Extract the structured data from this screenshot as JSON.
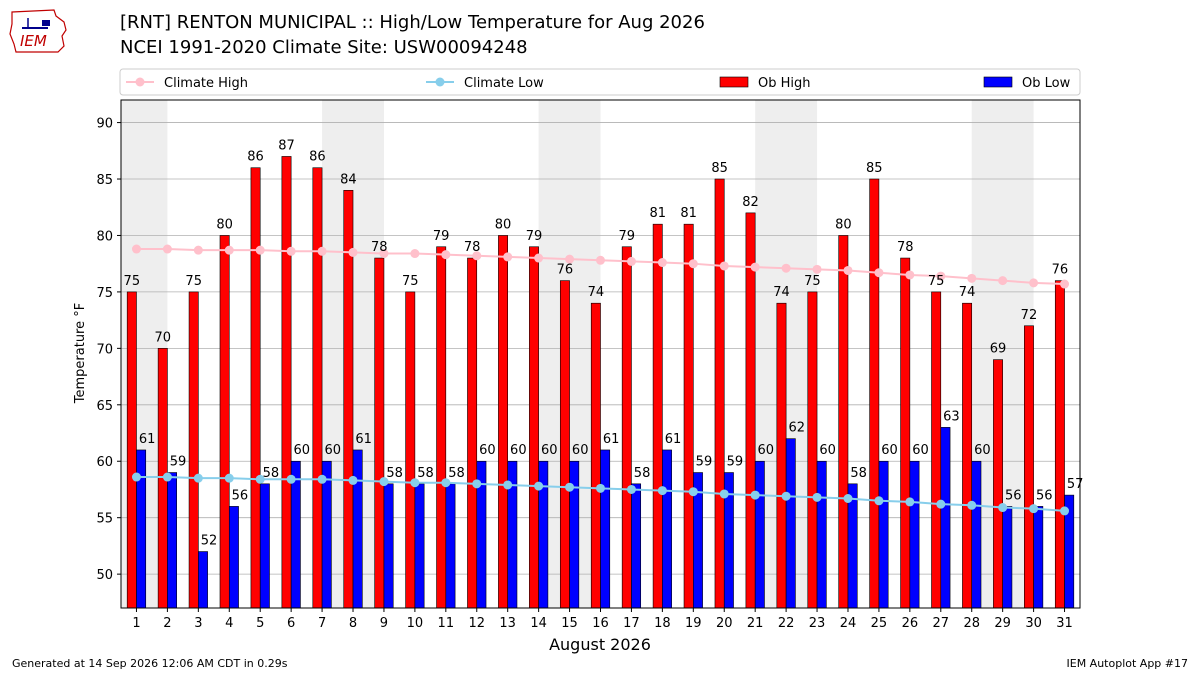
{
  "header": {
    "title_line1": "[RNT] RENTON MUNICIPAL :: High/Low Temperature for Aug 2026",
    "title_line2": "NCEI 1991-2020 Climate Site: USW00094248",
    "logo_text": "IEM"
  },
  "footer": {
    "generated": "Generated at 14 Sep 2026 12:06 AM CDT in 0.29s",
    "app": "IEM Autoplot App #17"
  },
  "colors": {
    "ob_high": "#ff0000",
    "ob_low": "#0000ff",
    "climate_high": "#ffc0cb",
    "climate_low": "#87ceeb",
    "weekend_band": "#eeeeee",
    "grid": "#b0b0b0"
  },
  "chart_data": {
    "type": "bar",
    "xlabel": "August 2026",
    "ylabel": "Temperature °F",
    "ylim": [
      47,
      92
    ],
    "yticks": [
      50,
      55,
      60,
      65,
      70,
      75,
      80,
      85,
      90
    ],
    "grid": true,
    "legend_placement": "top",
    "categories": [
      "1",
      "2",
      "3",
      "4",
      "5",
      "6",
      "7",
      "8",
      "9",
      "10",
      "11",
      "12",
      "13",
      "14",
      "15",
      "16",
      "17",
      "18",
      "19",
      "20",
      "21",
      "22",
      "23",
      "24",
      "25",
      "26",
      "27",
      "28",
      "29",
      "30",
      "31"
    ],
    "shaded_days": [
      1,
      8,
      15,
      22,
      29
    ],
    "series": [
      {
        "name": "Climate High",
        "kind": "line",
        "values": [
          78.8,
          78.8,
          78.7,
          78.7,
          78.7,
          78.6,
          78.6,
          78.5,
          78.4,
          78.4,
          78.3,
          78.2,
          78.1,
          78.0,
          77.9,
          77.8,
          77.7,
          77.6,
          77.5,
          77.3,
          77.2,
          77.1,
          77.0,
          76.9,
          76.7,
          76.5,
          76.4,
          76.2,
          76.0,
          75.8,
          75.7
        ]
      },
      {
        "name": "Climate Low",
        "kind": "line",
        "values": [
          58.6,
          58.6,
          58.5,
          58.5,
          58.4,
          58.4,
          58.4,
          58.3,
          58.2,
          58.1,
          58.1,
          58.0,
          57.9,
          57.8,
          57.7,
          57.6,
          57.5,
          57.4,
          57.3,
          57.1,
          57.0,
          56.9,
          56.8,
          56.7,
          56.5,
          56.4,
          56.2,
          56.1,
          55.9,
          55.8,
          55.6
        ]
      },
      {
        "name": "Ob High",
        "kind": "bar",
        "values": [
          75,
          70,
          75,
          80,
          86,
          87,
          86,
          84,
          78,
          75,
          79,
          78,
          80,
          79,
          76,
          74,
          79,
          81,
          81,
          85,
          82,
          74,
          75,
          80,
          85,
          78,
          75,
          74,
          69,
          72,
          76
        ]
      },
      {
        "name": "Ob Low",
        "kind": "bar",
        "values": [
          61,
          59,
          52,
          56,
          58,
          60,
          60,
          61,
          58,
          58,
          58,
          60,
          60,
          60,
          60,
          61,
          58,
          61,
          59,
          59,
          60,
          62,
          60,
          58,
          60,
          60,
          63,
          60,
          56,
          56,
          57
        ]
      }
    ]
  }
}
